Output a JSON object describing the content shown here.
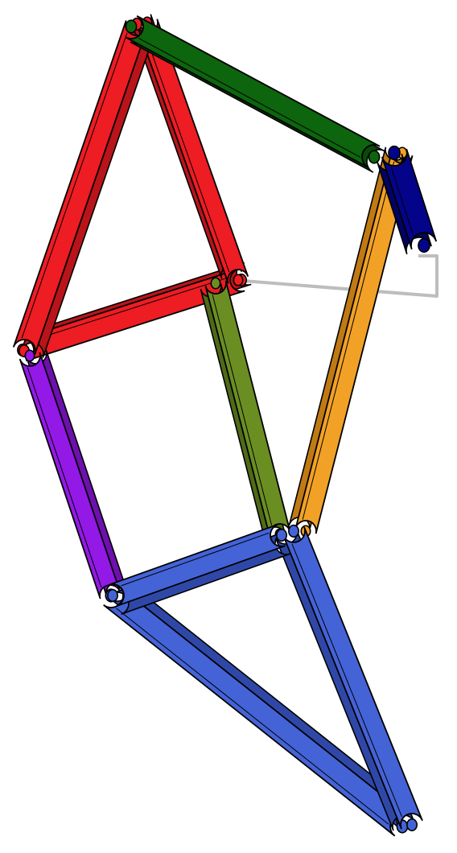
{
  "colors": {
    "background": "#ffffff",
    "outline": "#000000",
    "frame_line": "#bdbdbd",
    "link_red": "#ee1c23",
    "link_green": "#0d650d",
    "link_navy": "#04048a",
    "link_orange": "#f2a127",
    "link_olive": "#6b8e23",
    "link_purple": "#9319e6",
    "link_blue": "#4463d7"
  },
  "links": [
    {
      "name": "red-left-link",
      "color": "link_red",
      "shade": "#b8141a"
    },
    {
      "name": "red-diagonal-link",
      "color": "link_red",
      "shade": "#b8141a"
    },
    {
      "name": "red-cross-link",
      "color": "link_red",
      "shade": "#b8141a"
    },
    {
      "name": "green-top-link",
      "color": "link_green",
      "shade": "#094a09"
    },
    {
      "name": "orange-right-link",
      "color": "link_orange",
      "shade": "#c07a14"
    },
    {
      "name": "navy-crank-link",
      "color": "link_navy",
      "shade": "#020263"
    },
    {
      "name": "olive-middle-link",
      "color": "link_olive",
      "shade": "#4f6a18"
    },
    {
      "name": "purple-left-link",
      "color": "link_purple",
      "shade": "#6e10ad"
    },
    {
      "name": "blue-cross-link",
      "color": "link_blue",
      "shade": "#2f48a8"
    },
    {
      "name": "blue-lower-left-link",
      "color": "link_blue",
      "shade": "#2f48a8"
    },
    {
      "name": "blue-lower-right-link",
      "color": "link_blue",
      "shade": "#2f48a8"
    }
  ]
}
